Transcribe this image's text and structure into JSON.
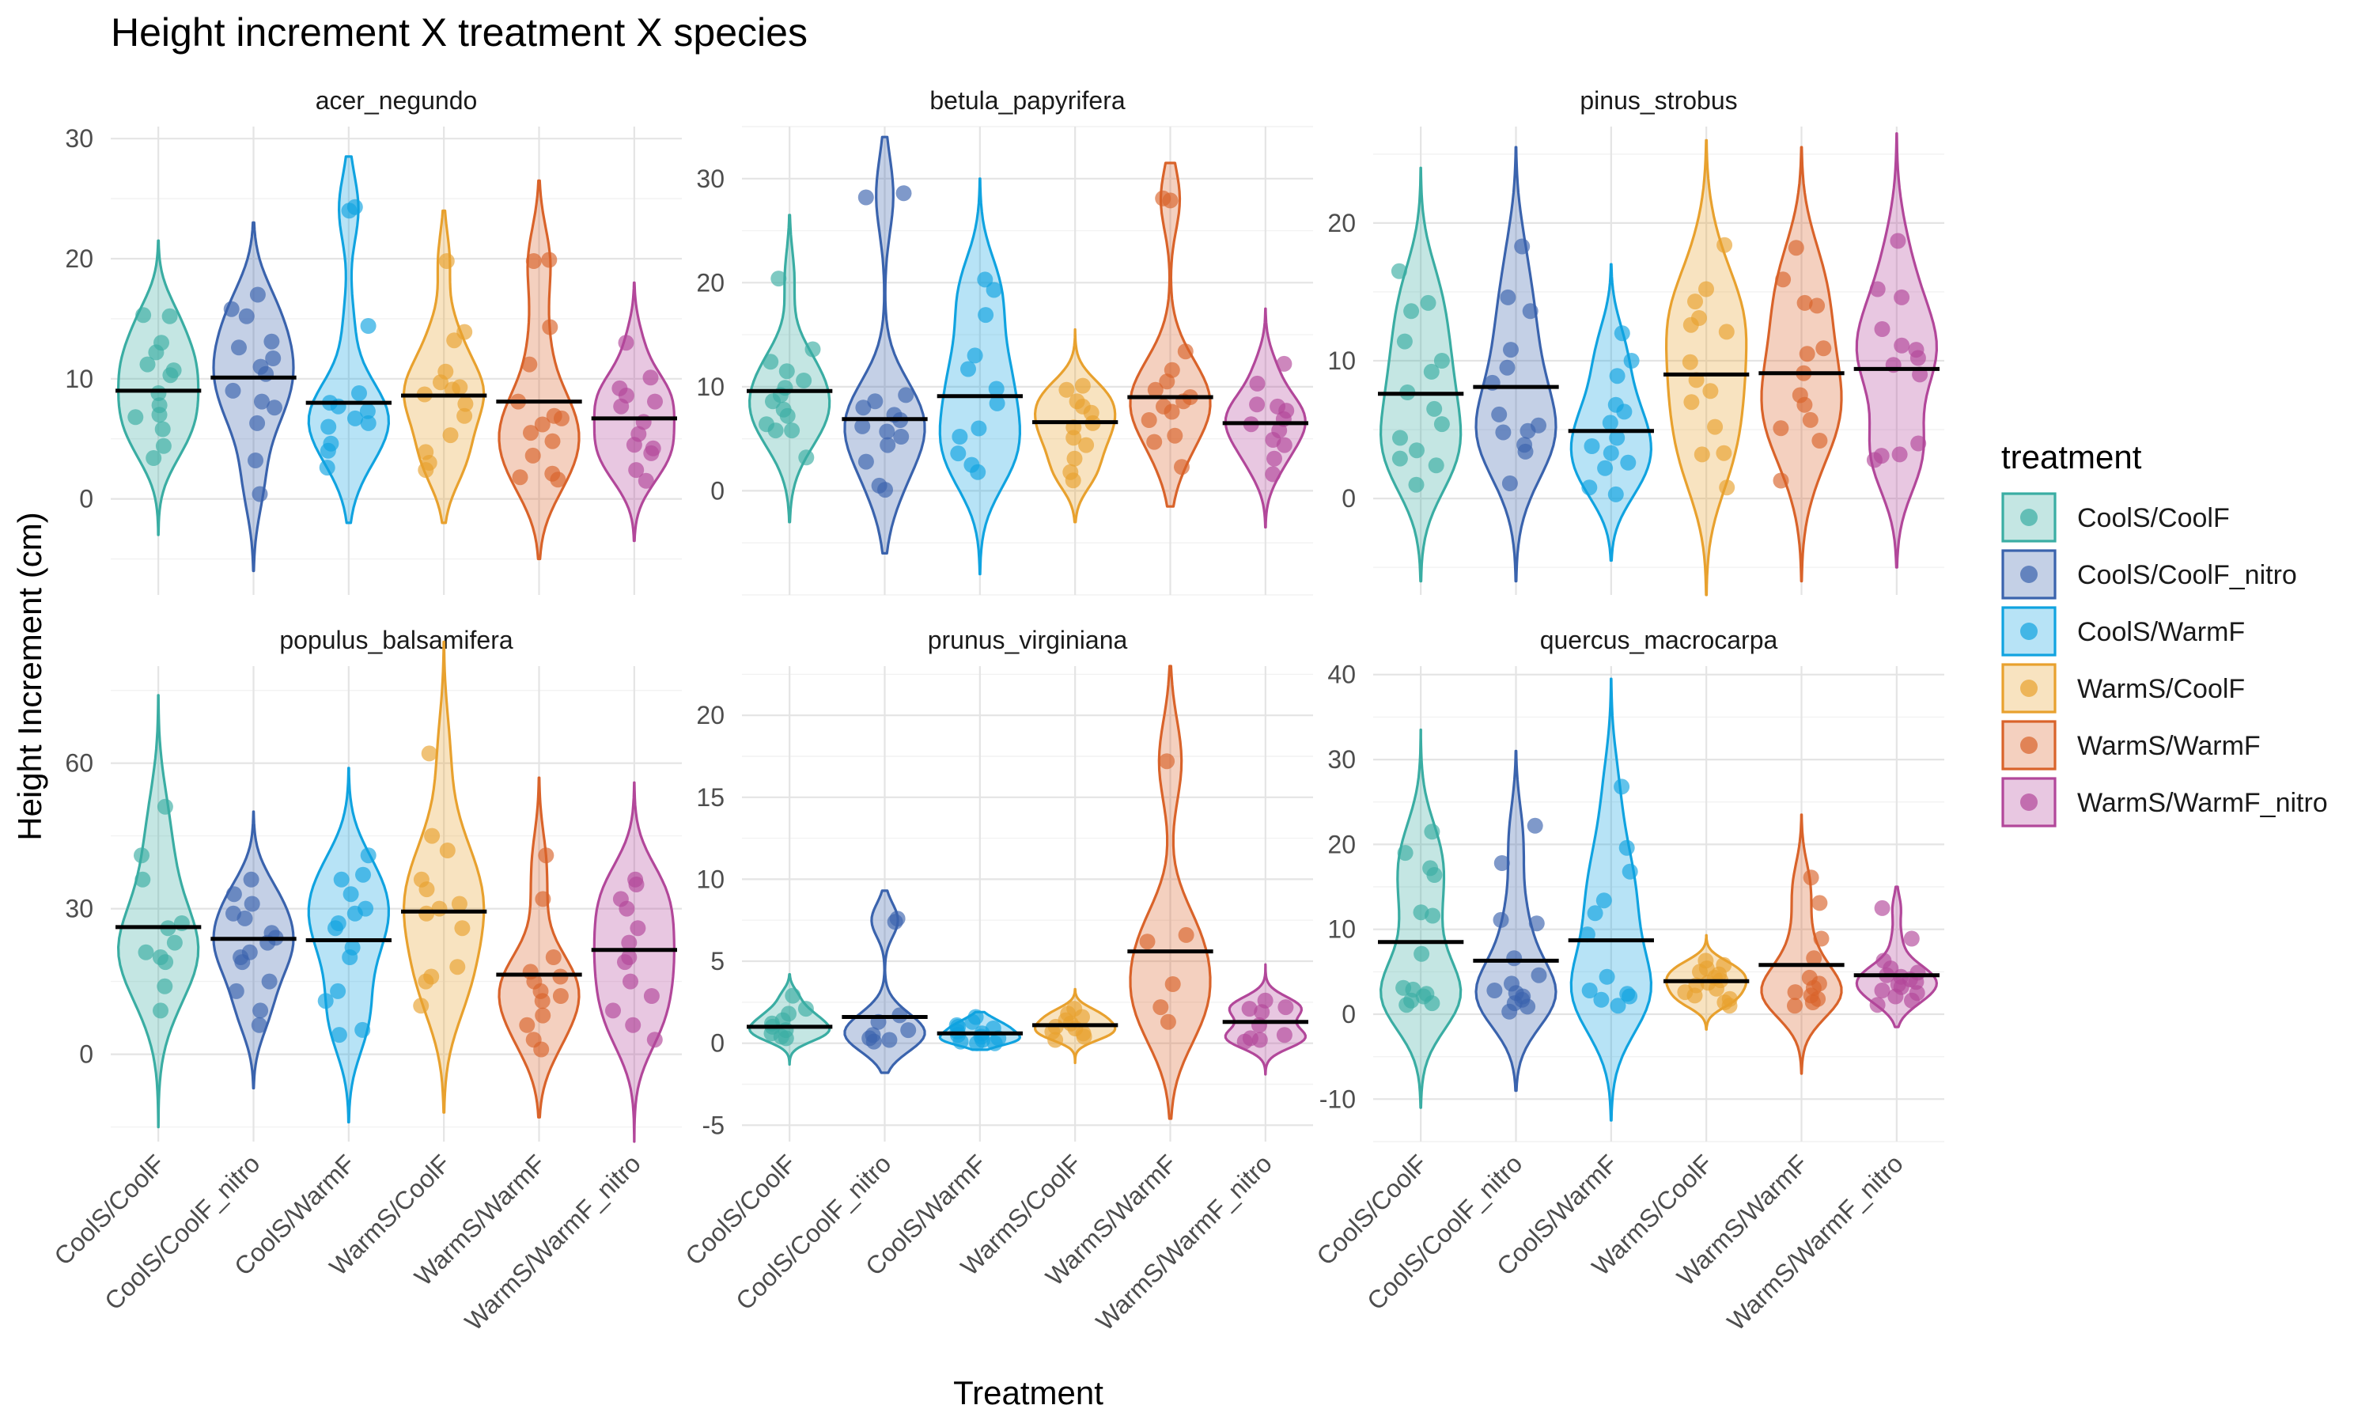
{
  "chart_data": {
    "type": "violin",
    "title": "Height increment X treatment X species",
    "xlabel": "Treatment",
    "ylabel": "Height Increment (cm)",
    "legend_title": "treatment",
    "legend_position": "right",
    "grid": true,
    "overlay": "jittered points with horizontal mean bar",
    "categories": [
      "CoolS/CoolF",
      "CoolS/CoolF_nitro",
      "CoolS/WarmF",
      "WarmS/CoolF",
      "WarmS/WarmF",
      "WarmS/WarmF_nitro"
    ],
    "colors": [
      "#3aada3",
      "#3a63ad",
      "#10a3e0",
      "#e8a12e",
      "#d9632a",
      "#b2479a"
    ],
    "panels": [
      {
        "species": "acer_negundo",
        "ylim": [
          -8,
          31
        ],
        "yticks": [
          0,
          10,
          20,
          30
        ],
        "groups": [
          {
            "treatment": "CoolS/CoolF",
            "mean": 9,
            "min": -3,
            "max": 21.5,
            "points": [
              15.3,
              15.2,
              13,
              12.2,
              11.2,
              10.7,
              10.3,
              8.8,
              7.8,
              7,
              6.8,
              5.8,
              4.4,
              3.4
            ]
          },
          {
            "treatment": "CoolS/CoolF_nitro",
            "mean": 10.1,
            "min": -6,
            "max": 23,
            "points": [
              17,
              15.8,
              15.2,
              13.1,
              12.6,
              11.7,
              11,
              10.4,
              9,
              8.1,
              7.6,
              6.3,
              3.2,
              0.4
            ]
          },
          {
            "treatment": "CoolS/WarmF",
            "mean": 8,
            "min": -2,
            "max": 28.5,
            "points": [
              24.3,
              24,
              14.4,
              8.8,
              8,
              7.7,
              7.3,
              6.7,
              6.3,
              6,
              4.6,
              4,
              2.6
            ]
          },
          {
            "treatment": "WarmS/CoolF",
            "mean": 8.6,
            "min": -2,
            "max": 24,
            "points": [
              19.8,
              13.9,
              13.2,
              10.6,
              9.7,
              9.3,
              9.1,
              8.7,
              7.9,
              6.9,
              5.3,
              3.9,
              3,
              2.4
            ]
          },
          {
            "treatment": "WarmS/WarmF",
            "mean": 8.1,
            "min": -5,
            "max": 26.5,
            "points": [
              19.9,
              19.8,
              14.3,
              11.2,
              8.1,
              6.9,
              6.7,
              6.2,
              5.5,
              4.8,
              3.6,
              2.1,
              1.8,
              1.6
            ]
          },
          {
            "treatment": "WarmS/WarmF_nitro",
            "mean": 6.7,
            "min": -3.5,
            "max": 18,
            "points": [
              13,
              10.1,
              9.2,
              8.6,
              8.1,
              7.7,
              6.4,
              5.4,
              4.5,
              4.2,
              3.8,
              2.4,
              1.5
            ]
          }
        ]
      },
      {
        "species": "betula_papyrifera",
        "ylim": [
          -10,
          35
        ],
        "yticks": [
          0,
          10,
          20,
          30
        ],
        "groups": [
          {
            "treatment": "CoolS/CoolF",
            "mean": 9.6,
            "min": -3,
            "max": 26.5,
            "points": [
              20.4,
              13.6,
              12.4,
              11.5,
              10.6,
              9.9,
              9.2,
              8.6,
              7.8,
              7.2,
              6.4,
              5.8,
              5.8,
              3.2
            ]
          },
          {
            "treatment": "CoolS/CoolF_nitro",
            "mean": 6.9,
            "min": -6,
            "max": 34,
            "points": [
              28.6,
              28.2,
              9.2,
              8.6,
              8,
              7.3,
              6.8,
              6.2,
              5.7,
              5.2,
              4.4,
              2.8,
              0.5,
              0.1
            ]
          },
          {
            "treatment": "CoolS/WarmF",
            "mean": 9.1,
            "min": -8,
            "max": 30,
            "points": [
              20.3,
              19.3,
              16.9,
              13,
              11.7,
              9.8,
              8.4,
              6,
              5.2,
              3.6,
              2.5,
              1.8
            ]
          },
          {
            "treatment": "WarmS/CoolF",
            "mean": 6.6,
            "min": -3,
            "max": 15.5,
            "points": [
              10.1,
              9.7,
              8.6,
              8.1,
              7.5,
              6.5,
              6.1,
              5.1,
              4.4,
              3.1,
              1.8,
              1
            ]
          },
          {
            "treatment": "WarmS/WarmF",
            "mean": 9,
            "min": -1.5,
            "max": 31.5,
            "points": [
              28.1,
              27.9,
              13.4,
              11.6,
              10.5,
              9.7,
              9,
              8.6,
              8.1,
              7.6,
              6.8,
              5.3,
              4.7,
              2.3
            ]
          },
          {
            "treatment": "WarmS/WarmF_nitro",
            "mean": 6.5,
            "min": -3.5,
            "max": 17.5,
            "points": [
              12.2,
              10.3,
              8.3,
              8.1,
              7.7,
              6.9,
              6.4,
              5.8,
              4.9,
              4.4,
              3.1,
              1.6
            ]
          }
        ]
      },
      {
        "species": "pinus_strobus",
        "ylim": [
          -7,
          27
        ],
        "yticks": [
          0,
          10,
          20
        ],
        "groups": [
          {
            "treatment": "CoolS/CoolF",
            "mean": 7.6,
            "min": -6,
            "max": 24,
            "points": [
              16.5,
              14.2,
              13.6,
              11.4,
              10,
              9.2,
              7.7,
              6.5,
              5.4,
              4.4,
              3.5,
              2.9,
              2.4,
              1
            ]
          },
          {
            "treatment": "CoolS/CoolF_nitro",
            "mean": 8.1,
            "min": -6,
            "max": 25.5,
            "points": [
              18.3,
              14.6,
              13.6,
              10.8,
              9.5,
              8.4,
              6.1,
              5.3,
              4.9,
              4.8,
              3.9,
              3.4,
              1.1
            ]
          },
          {
            "treatment": "CoolS/WarmF",
            "mean": 4.9,
            "min": -4.5,
            "max": 17,
            "points": [
              12,
              10,
              8.9,
              6.8,
              6.3,
              5.5,
              4.4,
              3.8,
              3.3,
              2.6,
              2.2,
              0.8,
              0.3
            ]
          },
          {
            "treatment": "WarmS/CoolF",
            "mean": 9,
            "min": -7,
            "max": 26,
            "points": [
              18.4,
              15.2,
              14.3,
              13.1,
              12.6,
              12.1,
              9.9,
              8.6,
              7.8,
              7,
              5.2,
              3.3,
              3.2,
              0.8
            ]
          },
          {
            "treatment": "WarmS/WarmF",
            "mean": 9.1,
            "min": -6,
            "max": 25.5,
            "points": [
              18.2,
              15.9,
              14.2,
              14,
              10.9,
              10.5,
              9.1,
              7.5,
              6.8,
              5.7,
              5.1,
              4.2,
              1.3
            ]
          },
          {
            "treatment": "WarmS/WarmF_nitro",
            "mean": 9.4,
            "min": -5,
            "max": 26.5,
            "points": [
              18.7,
              15.2,
              14.6,
              12.3,
              11.1,
              10.8,
              10.2,
              9.7,
              9,
              4,
              3.2,
              3.1,
              2.8
            ]
          }
        ]
      },
      {
        "species": "populus_balsamifera",
        "ylim": [
          -18,
          80
        ],
        "yticks": [
          0,
          30,
          60
        ],
        "groups": [
          {
            "treatment": "CoolS/CoolF",
            "mean": 26.2,
            "min": -15,
            "max": 74,
            "points": [
              51,
              41,
              36,
              27,
              26,
              23,
              21,
              20,
              19,
              14,
              9
            ]
          },
          {
            "treatment": "CoolS/CoolF_nitro",
            "mean": 23.8,
            "min": -7,
            "max": 50,
            "points": [
              36,
              33,
              31,
              29,
              28,
              25,
              24,
              23,
              21,
              20,
              19,
              15,
              13,
              9,
              6
            ]
          },
          {
            "treatment": "CoolS/WarmF",
            "mean": 23.5,
            "min": -14,
            "max": 59,
            "points": [
              41,
              37,
              36,
              33,
              30,
              29,
              27,
              26,
              22,
              20,
              13,
              11,
              5,
              4
            ]
          },
          {
            "treatment": "WarmS/CoolF",
            "mean": 29.4,
            "min": -12,
            "max": 85,
            "points": [
              62,
              45,
              42,
              36,
              34,
              31,
              30,
              29,
              26,
              18,
              16,
              15,
              10
            ]
          },
          {
            "treatment": "WarmS/WarmF",
            "mean": 16.4,
            "min": -13,
            "max": 57,
            "points": [
              41,
              32,
              20,
              17,
              16,
              15,
              13,
              12,
              11,
              8,
              6,
              3,
              1
            ]
          },
          {
            "treatment": "WarmS/WarmF_nitro",
            "mean": 21.5,
            "min": -18,
            "max": 56,
            "points": [
              36,
              35,
              32,
              30,
              26,
              23,
              20,
              19,
              15,
              12,
              9,
              6,
              3
            ]
          }
        ]
      },
      {
        "species": "prunus_virginiana",
        "ylim": [
          -6,
          23
        ],
        "yticks": [
          -5,
          0,
          5,
          10,
          15,
          20
        ],
        "groups": [
          {
            "treatment": "CoolS/CoolF",
            "mean": 1,
            "min": -1.3,
            "max": 4.2,
            "points": [
              2.9,
              2.1,
              1.8,
              1.4,
              1.2,
              1,
              0.8,
              0.6,
              0.4,
              0.3
            ]
          },
          {
            "treatment": "CoolS/CoolF_nitro",
            "mean": 1.6,
            "min": -1.8,
            "max": 9.3,
            "points": [
              7.6,
              7.4,
              1.7,
              1.3,
              0.8,
              0.5,
              0.3,
              0.2,
              0.1
            ]
          },
          {
            "treatment": "CoolS/WarmF",
            "mean": 0.6,
            "min": -0.4,
            "max": 1.9,
            "points": [
              1.6,
              1.3,
              1.1,
              1,
              0.9,
              0.7,
              0.6,
              0.5,
              0.4,
              0.3,
              0.2,
              0.1,
              0,
              0
            ]
          },
          {
            "treatment": "WarmS/CoolF",
            "mean": 1.1,
            "min": -1.2,
            "max": 3.3,
            "points": [
              2.1,
              1.8,
              1.6,
              1.4,
              1.2,
              1,
              0.9,
              0.7,
              0.6,
              0.4,
              0.2
            ]
          },
          {
            "treatment": "WarmS/WarmF",
            "mean": 5.6,
            "min": -4.6,
            "max": 23,
            "points": [
              17.2,
              6.6,
              6.2,
              3.6,
              2.2,
              1.3
            ]
          },
          {
            "treatment": "WarmS/WarmF_nitro",
            "mean": 1.3,
            "min": -1.9,
            "max": 4.8,
            "points": [
              2.6,
              2.2,
              2.1,
              1.9,
              1.1,
              0.5,
              0.3,
              0.2,
              0.1
            ]
          }
        ]
      },
      {
        "species": "quercus_macrocarpa",
        "ylim": [
          -15,
          41
        ],
        "yticks": [
          -10,
          0,
          10,
          20,
          30,
          40
        ],
        "groups": [
          {
            "treatment": "CoolS/CoolF",
            "mean": 8.5,
            "min": -11,
            "max": 33.5,
            "points": [
              21.5,
              19,
              17.2,
              16.4,
              12,
              11.6,
              7.1,
              3.1,
              2.9,
              2.4,
              2.1,
              1.6,
              1.3,
              1.1
            ]
          },
          {
            "treatment": "CoolS/CoolF_nitro",
            "mean": 6.3,
            "min": -9,
            "max": 31,
            "points": [
              22.2,
              17.8,
              11.1,
              10.7,
              6.6,
              4.6,
              3.6,
              2.8,
              2.5,
              2.1,
              1.7,
              1.3,
              0.9,
              0.3
            ]
          },
          {
            "treatment": "CoolS/WarmF",
            "mean": 8.7,
            "min": -12.5,
            "max": 39.5,
            "points": [
              26.8,
              19.6,
              16.8,
              13.4,
              11.9,
              9.4,
              4.4,
              2.8,
              2.4,
              2.1,
              1.7,
              1
            ]
          },
          {
            "treatment": "WarmS/CoolF",
            "mean": 3.9,
            "min": -1.8,
            "max": 9.3,
            "points": [
              6.3,
              5.8,
              5.4,
              5,
              4.7,
              4.3,
              4,
              3.7,
              3.4,
              3,
              2.6,
              2.2,
              1.8,
              1.4,
              1
            ]
          },
          {
            "treatment": "WarmS/WarmF",
            "mean": 5.8,
            "min": -7,
            "max": 23.5,
            "points": [
              16.1,
              13.1,
              8.9,
              6.6,
              4.3,
              3.6,
              3.1,
              2.6,
              2.2,
              1.8,
              1.4,
              1
            ]
          },
          {
            "treatment": "WarmS/WarmF_nitro",
            "mean": 4.6,
            "min": -1.5,
            "max": 15,
            "points": [
              12.5,
              8.9,
              6.3,
              5.4,
              4.9,
              4.6,
              4.4,
              4.1,
              3.8,
              3.5,
              3.2,
              2.8,
              2.5,
              2.1,
              1.6,
              1.1
            ]
          }
        ]
      }
    ]
  }
}
